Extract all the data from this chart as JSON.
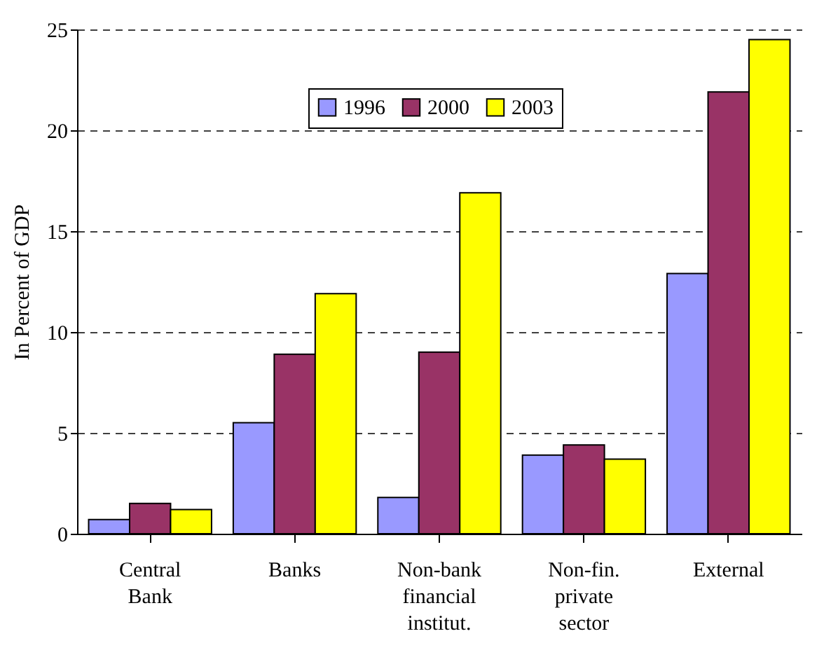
{
  "chart_data": {
    "type": "bar",
    "ylabel": "In Percent of GDP",
    "categories": [
      "Central Bank",
      "Banks",
      "Non-bank financial institut.",
      "Non-fin. private sector",
      "External"
    ],
    "series": [
      {
        "name": "1996",
        "color": "#9999ff",
        "values": [
          0.7,
          5.5,
          1.8,
          3.9,
          12.9
        ]
      },
      {
        "name": "2000",
        "color": "#993366",
        "values": [
          1.5,
          8.9,
          9.0,
          4.4,
          21.9
        ]
      },
      {
        "name": "2003",
        "color": "#ffff00",
        "values": [
          1.2,
          11.9,
          16.9,
          3.7,
          24.5
        ]
      }
    ],
    "ylim": [
      0,
      25
    ],
    "yticks": [
      0,
      5,
      10,
      15,
      20,
      25
    ],
    "grid": "y",
    "legend": "top"
  }
}
